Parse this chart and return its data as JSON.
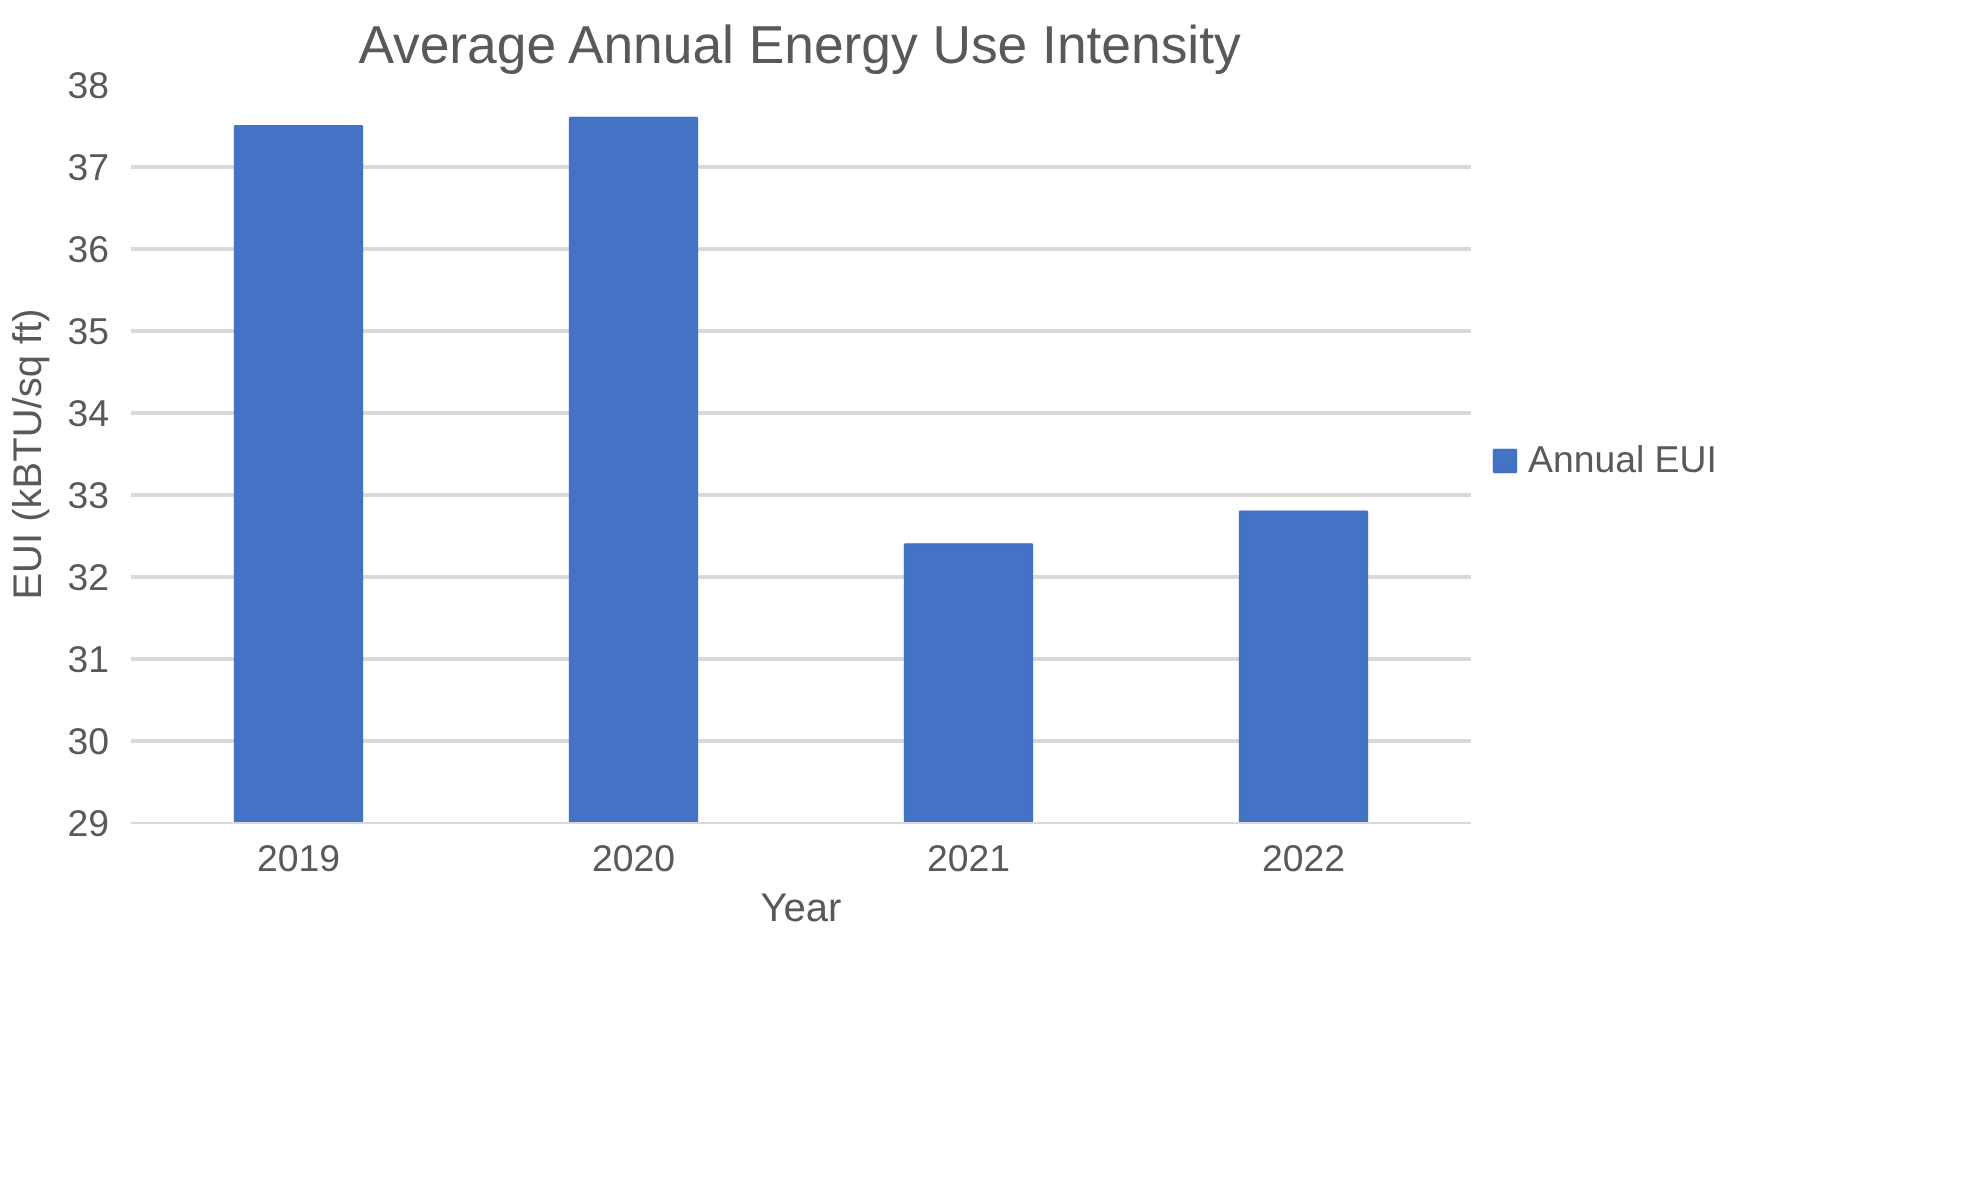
{
  "chart_data": {
    "type": "bar",
    "title": "Average Annual Energy Use Intensity",
    "xlabel": "Year",
    "ylabel": "EUI (kBTU/sq ft)",
    "categories": [
      "2019",
      "2020",
      "2021",
      "2022"
    ],
    "series": [
      {
        "name": "Annual EUI",
        "color": "#4472c4",
        "values": [
          37.5,
          37.6,
          32.4,
          32.8
        ]
      }
    ],
    "ylim": [
      29,
      38
    ],
    "yticks": [
      29,
      30,
      31,
      32,
      33,
      34,
      35,
      36,
      37,
      38
    ],
    "grid": "y",
    "legend": "right"
  }
}
